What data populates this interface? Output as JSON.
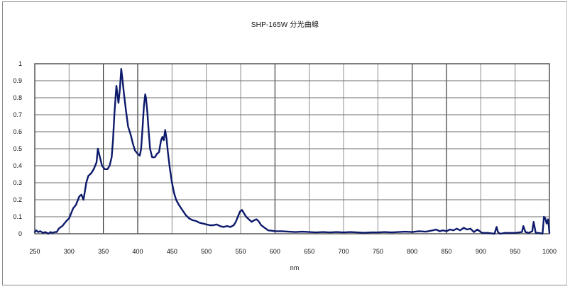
{
  "chart_data": {
    "type": "line",
    "title": "SHP-165W 分光曲線",
    "xlabel": "nm",
    "ylabel": "",
    "xlim": [
      250,
      1000
    ],
    "ylim": [
      0,
      1
    ],
    "x_ticks": [
      250,
      300,
      350,
      400,
      450,
      500,
      550,
      600,
      650,
      700,
      750,
      800,
      850,
      900,
      950,
      1000
    ],
    "y_ticks": [
      0,
      0.1,
      0.2,
      0.3,
      0.4,
      0.5,
      0.6,
      0.7,
      0.8,
      0.9,
      1
    ],
    "y_tick_labels": [
      "0",
      "0.1",
      "0.2",
      "0.3",
      "0.4",
      "0.5",
      "0.6",
      "0.7",
      "0.8",
      "0.9",
      "1"
    ],
    "grid": true,
    "legend": null,
    "series": [
      {
        "name": "SHP-165W",
        "color": "#0d1a6b",
        "x": [
          250,
          252,
          255,
          258,
          260,
          262,
          265,
          268,
          270,
          273,
          276,
          279,
          282,
          285,
          288,
          290,
          293,
          296,
          300,
          303,
          306,
          310,
          313,
          315,
          318,
          321,
          323,
          325,
          328,
          332,
          336,
          340,
          342,
          345,
          348,
          352,
          356,
          359,
          362,
          364,
          366,
          368,
          369,
          371,
          372,
          374,
          376,
          378,
          380,
          383,
          386,
          390,
          393,
          396,
          400,
          403,
          405,
          407,
          409,
          411,
          412,
          414,
          416,
          418,
          421,
          425,
          428,
          431,
          434,
          436,
          438,
          440,
          442,
          444,
          447,
          450,
          453,
          456,
          460,
          465,
          470,
          475,
          480,
          485,
          490,
          495,
          500,
          505,
          510,
          515,
          520,
          525,
          530,
          535,
          540,
          543,
          546,
          549,
          552,
          555,
          558,
          562,
          566,
          570,
          573,
          576,
          580,
          585,
          590,
          595,
          600,
          610,
          620,
          630,
          640,
          650,
          660,
          670,
          680,
          690,
          700,
          710,
          720,
          730,
          740,
          750,
          760,
          770,
          780,
          790,
          800,
          810,
          820,
          830,
          835,
          840,
          845,
          850,
          855,
          860,
          865,
          870,
          875,
          880,
          885,
          890,
          895,
          900,
          902,
          905,
          910,
          920,
          923,
          925,
          928,
          935,
          950,
          960,
          962,
          965,
          970,
          975,
          977,
          980,
          985,
          990,
          992,
          994,
          996,
          998,
          1000
        ],
        "values": [
          0.01,
          0.02,
          0.01,
          0.015,
          0.01,
          0.005,
          0.01,
          0.005,
          0.0,
          0.01,
          0.005,
          0.01,
          0.01,
          0.03,
          0.04,
          0.045,
          0.06,
          0.075,
          0.09,
          0.12,
          0.15,
          0.17,
          0.2,
          0.22,
          0.23,
          0.2,
          0.25,
          0.3,
          0.34,
          0.355,
          0.38,
          0.42,
          0.5,
          0.45,
          0.4,
          0.38,
          0.38,
          0.4,
          0.45,
          0.55,
          0.7,
          0.82,
          0.87,
          0.8,
          0.77,
          0.85,
          0.97,
          0.9,
          0.82,
          0.72,
          0.63,
          0.58,
          0.53,
          0.49,
          0.47,
          0.46,
          0.5,
          0.62,
          0.75,
          0.82,
          0.8,
          0.72,
          0.6,
          0.5,
          0.45,
          0.45,
          0.47,
          0.48,
          0.55,
          0.57,
          0.55,
          0.61,
          0.56,
          0.48,
          0.38,
          0.3,
          0.24,
          0.2,
          0.17,
          0.14,
          0.11,
          0.09,
          0.08,
          0.075,
          0.065,
          0.06,
          0.055,
          0.05,
          0.05,
          0.055,
          0.045,
          0.04,
          0.045,
          0.04,
          0.05,
          0.07,
          0.1,
          0.13,
          0.14,
          0.12,
          0.1,
          0.085,
          0.07,
          0.08,
          0.085,
          0.075,
          0.05,
          0.035,
          0.02,
          0.018,
          0.015,
          0.015,
          0.012,
          0.01,
          0.012,
          0.01,
          0.008,
          0.01,
          0.008,
          0.01,
          0.008,
          0.01,
          0.008,
          0.006,
          0.008,
          0.008,
          0.01,
          0.008,
          0.01,
          0.012,
          0.01,
          0.015,
          0.012,
          0.02,
          0.025,
          0.015,
          0.02,
          0.015,
          0.025,
          0.02,
          0.03,
          0.02,
          0.035,
          0.025,
          0.03,
          0.01,
          0.025,
          0.01,
          0.005,
          0.005,
          0.005,
          0.0,
          0.04,
          0.01,
          0.0,
          0.005,
          0.005,
          0.01,
          0.045,
          0.01,
          0.005,
          0.015,
          0.07,
          0.005,
          0.005,
          0.0,
          0.1,
          0.09,
          0.06,
          0.085,
          0.005
        ]
      }
    ]
  },
  "page": {
    "title": "SHP-165W 分光曲線",
    "x_axis_label": "nm"
  }
}
